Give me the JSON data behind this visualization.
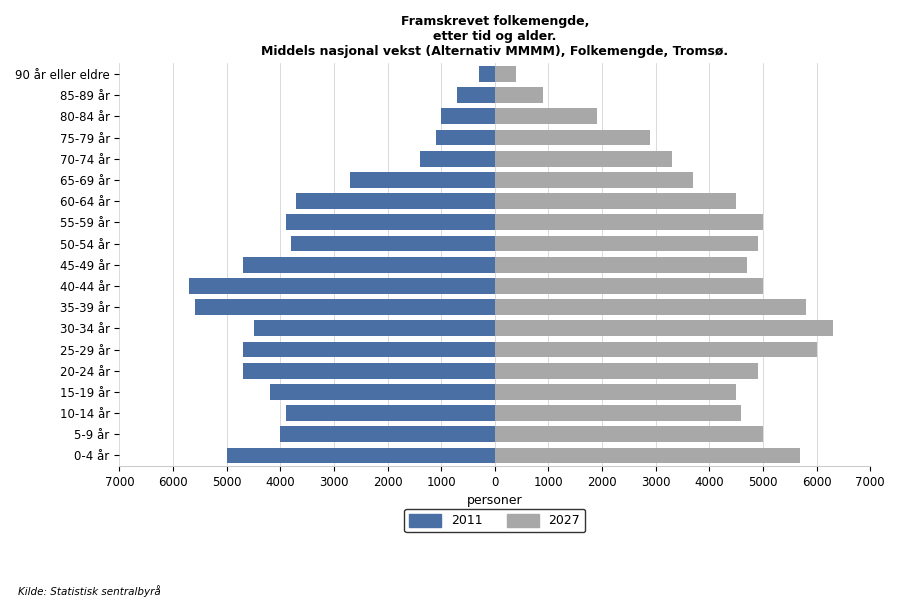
{
  "title": "Framskrevet folkemengde,\netter tid og alder.\nMiddels nasjonal vekst (Alternativ MMMM), Folkemengde, Tromsø.",
  "xlabel": "personer",
  "age_groups": [
    "90 år eller eldre",
    "85-89 år",
    "80-84 år",
    "75-79 år",
    "70-74 år",
    "65-69 år",
    "60-64 år",
    "55-59 år",
    "50-54 år",
    "45-49 år",
    "40-44 år",
    "35-39 år",
    "30-34 år",
    "25-29 år",
    "20-24 år",
    "15-19 år",
    "10-14 år",
    "5-9 år",
    "0-4 år"
  ],
  "values_2011": [
    300,
    700,
    1000,
    1100,
    1400,
    2700,
    3700,
    3900,
    3800,
    4700,
    5700,
    5600,
    4500,
    4700,
    4700,
    4200,
    3900,
    4000,
    5000
  ],
  "values_2027": [
    400,
    900,
    1900,
    2900,
    3300,
    3700,
    4500,
    5000,
    4900,
    4700,
    5000,
    5800,
    6300,
    6000,
    4900,
    4500,
    4600,
    5000,
    5700
  ],
  "color_2011": "#4a6fa5",
  "color_2027": "#a8a8a8",
  "xlim": 7000,
  "source": "Kilde: Statistisk sentralbyrå",
  "legend_2011": "2011",
  "legend_2027": "2027",
  "background_color": "#ffffff",
  "grid_color": "#cccccc"
}
